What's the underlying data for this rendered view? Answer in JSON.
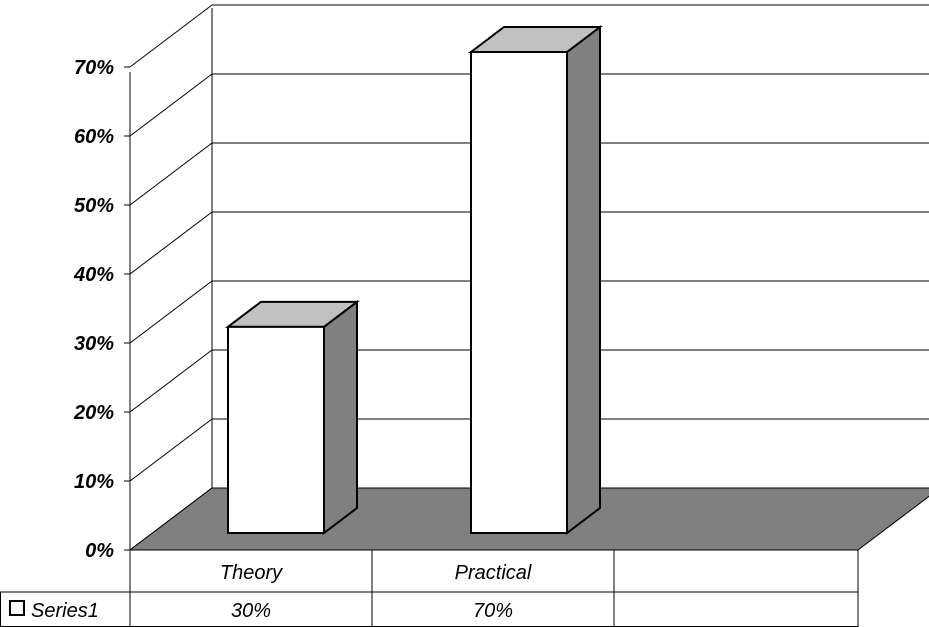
{
  "chart_data": {
    "type": "bar",
    "style": "3d-column-with-data-table",
    "categories": [
      "Theory",
      "Practical"
    ],
    "series": [
      {
        "name": "Series1",
        "values": [
          0.3,
          0.7
        ],
        "display_values": [
          "30%",
          "70%"
        ]
      }
    ],
    "yticks": [
      "0%",
      "10%",
      "20%",
      "30%",
      "40%",
      "50%",
      "60%",
      "70%"
    ],
    "ylim": [
      0,
      0.7
    ],
    "grid": true,
    "legend": "data-table-left",
    "colors": {
      "bar_front": "#ffffff",
      "bar_top": "#c0c0c0",
      "bar_side": "#808080",
      "floor": "#808080",
      "line": "#000000"
    }
  }
}
